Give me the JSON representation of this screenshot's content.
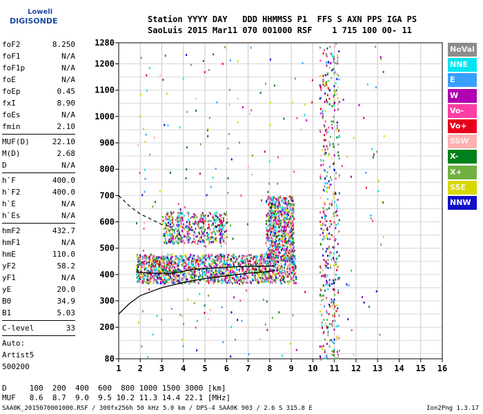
{
  "logo": {
    "line1": "Lowell",
    "line2": "DIGISONDE"
  },
  "header": {
    "line1": "Station YYYY DAY   DDD HHMMSS P1  FFS S AXN PPS IGA PS",
    "line2": "SaoLuis 2015 Mar11 070 001000 RSF    1 715 100 00- 11"
  },
  "params": {
    "group1": [
      {
        "k": "foF2",
        "v": "8.250"
      },
      {
        "k": "foF1",
        "v": "N/A"
      },
      {
        "k": "foF1p",
        "v": "N/A"
      },
      {
        "k": "foE",
        "v": "N/A"
      },
      {
        "k": "foEp",
        "v": "0.45"
      },
      {
        "k": "fxI",
        "v": "8.90"
      },
      {
        "k": "foEs",
        "v": "N/A"
      },
      {
        "k": "fmin",
        "v": "2.10"
      }
    ],
    "group2": [
      {
        "k": "MUF(D)",
        "v": "22.10"
      },
      {
        "k": "M(D)",
        "v": "2.68"
      },
      {
        "k": "D",
        "v": "N/A"
      }
    ],
    "group3": [
      {
        "k": "h`F",
        "v": "400.0"
      },
      {
        "k": "h`F2",
        "v": "400.0"
      },
      {
        "k": "h`E",
        "v": "N/A"
      },
      {
        "k": "h`Es",
        "v": "N/A"
      }
    ],
    "group4": [
      {
        "k": "hmF2",
        "v": "432.7"
      },
      {
        "k": "hmF1",
        "v": "N/A"
      },
      {
        "k": "hmE",
        "v": "110.0"
      },
      {
        "k": "yF2",
        "v": "58.2"
      },
      {
        "k": "yF1",
        "v": "N/A"
      },
      {
        "k": "yE",
        "v": "20.0"
      },
      {
        "k": "B0",
        "v": "34.9"
      },
      {
        "k": "B1",
        "v": "5.03"
      }
    ],
    "group5": [
      {
        "k": "C-level",
        "v": "33"
      }
    ],
    "autoscale": [
      "Auto:",
      "Artist5",
      "500200"
    ]
  },
  "legend": [
    {
      "label": "NoVal",
      "color": "#8c8c8c"
    },
    {
      "label": "NNE",
      "color": "#00e5f0"
    },
    {
      "label": "E",
      "color": "#3aa0ff"
    },
    {
      "label": "W",
      "color": "#b000b0"
    },
    {
      "label": "Vo-",
      "color": "#ff3ea5"
    },
    {
      "label": "Vo+",
      "color": "#e8001c"
    },
    {
      "label": "SSW",
      "color": "#ffb0b0"
    },
    {
      "label": "X-",
      "color": "#00801a"
    },
    {
      "label": "X+",
      "color": "#70b040"
    },
    {
      "label": "SSE",
      "color": "#d8d800"
    },
    {
      "label": "NNW",
      "color": "#1010c8"
    }
  ],
  "footer": {
    "line1": "D     100  200  400  600  800 1000 1500 3000 [km]",
    "line2": "MUF   8.6  8.7  9.0  9.5 10.2 11.3 14.4 22.1 [MHz]",
    "line3": "SAA0K_2015070001000.RSF / 300fx256h 50 kHz 5.0 km / DPS-4 SAA0K 903 / 2.6 S 315.8 E",
    "version": "Ion2Png 1.3.17"
  },
  "chart_data": {
    "type": "scatter",
    "title": "",
    "xlabel": "",
    "ylabel": "",
    "xlim": [
      1,
      16
    ],
    "ylim": [
      80,
      1280
    ],
    "x_ticks": [
      1,
      2,
      3,
      4,
      5,
      6,
      7,
      8,
      9,
      10,
      11,
      12,
      13,
      14,
      15,
      16
    ],
    "y_ticks": [
      80,
      200,
      300,
      400,
      500,
      600,
      700,
      800,
      900,
      1000,
      1100,
      1200,
      1280
    ],
    "grid": true,
    "echo_clusters": [
      {
        "name": "F-trace",
        "xmin": 1.8,
        "xmax": 9.2,
        "ymin": 370,
        "ymax": 480
      },
      {
        "name": "F-upper",
        "xmin": 3.0,
        "xmax": 6.0,
        "ymin": 520,
        "ymax": 640
      },
      {
        "name": "spread-F",
        "xmin": 7.8,
        "xmax": 9.1,
        "ymin": 450,
        "ymax": 700
      },
      {
        "name": "band-10.5",
        "xmin": 10.3,
        "xmax": 11.2,
        "ymin": 80,
        "ymax": 1280
      }
    ],
    "profile_solid": [
      [
        1,
        250
      ],
      [
        1.5,
        290
      ],
      [
        2,
        320
      ],
      [
        3,
        350
      ],
      [
        4,
        370
      ],
      [
        5,
        385
      ],
      [
        6,
        395
      ],
      [
        7,
        405
      ],
      [
        8,
        412
      ],
      [
        8.25,
        415
      ]
    ],
    "profile_fit": [
      [
        1.8,
        410
      ],
      [
        2.5,
        405
      ],
      [
        3.5,
        405
      ],
      [
        4.5,
        420
      ],
      [
        5.5,
        425
      ],
      [
        6.5,
        430
      ],
      [
        7.5,
        432
      ],
      [
        8.25,
        432
      ]
    ],
    "profile_dashed": [
      [
        1,
        700
      ],
      [
        1.5,
        660
      ],
      [
        2,
        630
      ],
      [
        2.5,
        610
      ],
      [
        3,
        590
      ],
      [
        3.5,
        580
      ]
    ]
  }
}
